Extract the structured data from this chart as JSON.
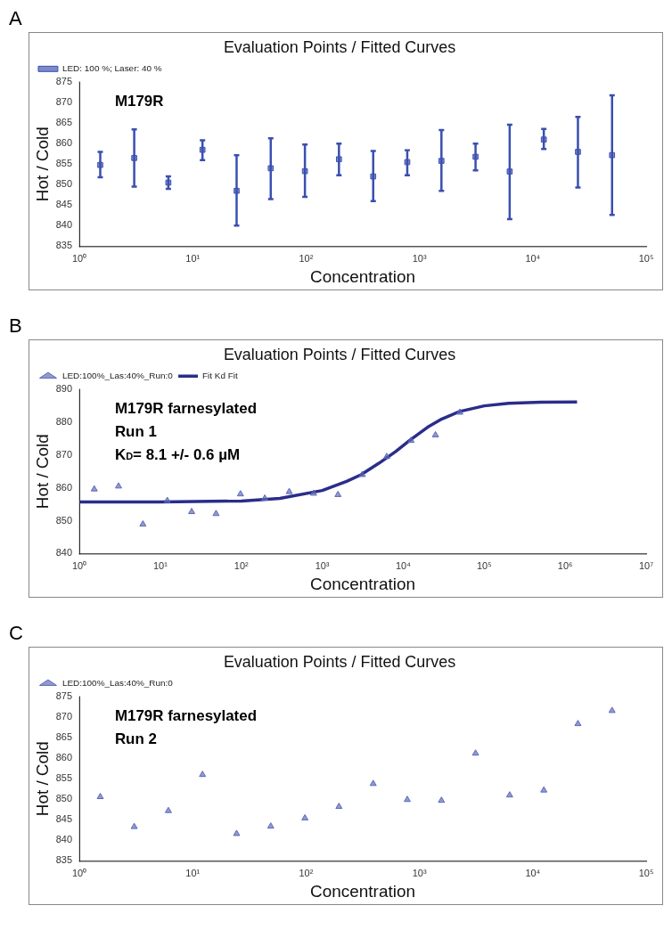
{
  "chart_data": [
    {
      "type": "scatter",
      "title": "Evaluation Points / Fitted Curves",
      "xlabel": "Concentration",
      "ylabel": "Hot / Cold",
      "annotations": [
        "A",
        "M179R"
      ],
      "x": [
        1.53,
        3.05,
        6.1,
        12.2,
        24.4,
        48.8,
        97.7,
        195,
        391,
        781,
        1563,
        3125,
        6250,
        12500,
        25000,
        50000
      ],
      "series": [
        {
          "name": "LED: 100 %; Laser: 40 %",
          "color": "#3a4fb0",
          "marker": "square",
          "values": [
            854.8,
            856.5,
            850.5,
            858.5,
            848.5,
            854,
            853.3,
            856.2,
            852,
            855.5,
            855.8,
            856.8,
            853.2,
            861,
            858,
            857.2
          ],
          "errors": [
            [
              851.8,
              858
            ],
            [
              849.5,
              863.5
            ],
            [
              849,
              852
            ],
            [
              856,
              860.8
            ],
            [
              840,
              857.2
            ],
            [
              846.5,
              861.3
            ],
            [
              847,
              859.8
            ],
            [
              852.3,
              860
            ],
            [
              846,
              858.2
            ],
            [
              852.3,
              858.4
            ],
            [
              848.5,
              863.3
            ],
            [
              853.5,
              860
            ],
            [
              841.6,
              864.6
            ],
            [
              858.7,
              863.6
            ],
            [
              849.3,
              866.5
            ],
            [
              842.6,
              871.8
            ]
          ]
        }
      ],
      "xlim": [
        1,
        100000
      ],
      "xticks": [
        {
          "value": 1,
          "label": "10⁰"
        },
        {
          "value": 10,
          "label": "10¹"
        },
        {
          "value": 100,
          "label": "10²"
        },
        {
          "value": 1000,
          "label": "10³"
        },
        {
          "value": 10000,
          "label": "10⁴"
        },
        {
          "value": 100000,
          "label": "10⁵"
        }
      ],
      "ylim": [
        835,
        875
      ],
      "yticks": [
        835,
        840,
        845,
        850,
        855,
        860,
        865,
        870,
        875
      ],
      "log": "x",
      "grid": false,
      "legend": "top left"
    },
    {
      "type": "scatter",
      "title": "Evaluation Points / Fitted Curves",
      "xlabel": "Concentration",
      "ylabel": "Hot / Cold",
      "annotations": [
        "B",
        "M179R farnesylated",
        "Run 1",
        "K$_{D}$= 8.1 +/- 0.6 µM"
      ],
      "x": [
        1.53,
        3.05,
        6.1,
        12.2,
        24.4,
        48.8,
        97.7,
        195,
        391,
        781,
        1563,
        3125,
        6250,
        12500,
        25000,
        50000
      ],
      "series": [
        {
          "name": "LED:100%_Las:40%_Run:0",
          "color": "#5a68b8",
          "marker": "triangle",
          "values": [
            859.6,
            860.5,
            848.9,
            856.1,
            852.7,
            852.1,
            858.1,
            856.8,
            858.8,
            858.3,
            857.9,
            864,
            869.5,
            874.4,
            876.1,
            883
          ]
        },
        {
          "name": "Fit Kd Fit",
          "type": "line",
          "color": "#2a2d8a",
          "marker": "none",
          "line_style": "solid",
          "x": [
            1,
            10,
            100,
            300,
            1000,
            2000,
            3000,
            5000,
            8000,
            12000,
            20000,
            30000,
            50000,
            100000,
            200000,
            500000,
            1400000
          ],
          "values": [
            855.7,
            855.7,
            856,
            856.8,
            859.2,
            862,
            864,
            867.5,
            871,
            874.5,
            878.5,
            881,
            883.3,
            885,
            885.8,
            886.1,
            886.2
          ]
        }
      ],
      "xlim": [
        1,
        10000000
      ],
      "xticks": [
        {
          "value": 1,
          "label": "10⁰"
        },
        {
          "value": 10,
          "label": "10¹"
        },
        {
          "value": 100,
          "label": "10²"
        },
        {
          "value": 1000,
          "label": "10³"
        },
        {
          "value": 10000,
          "label": "10⁴"
        },
        {
          "value": 100000,
          "label": "10⁵"
        },
        {
          "value": 1000000,
          "label": "10⁶"
        },
        {
          "value": 10000000,
          "label": "10⁷"
        }
      ],
      "ylim": [
        840,
        890
      ],
      "yticks": [
        840,
        850,
        860,
        870,
        880,
        890
      ],
      "log": "x",
      "grid": false,
      "legend": "top left"
    },
    {
      "type": "scatter",
      "title": "Evaluation Points / Fitted Curves",
      "xlabel": "Concentration",
      "ylabel": "Hot / Cold",
      "annotations": [
        "C",
        "M179R farnesylated",
        "Run 2"
      ],
      "x": [
        1.53,
        3.05,
        6.1,
        12.2,
        24.4,
        48.8,
        97.7,
        195,
        391,
        781,
        1563,
        3125,
        6250,
        12500,
        25000,
        50000
      ],
      "series": [
        {
          "name": "LED:100%_Las:40%_Run:0",
          "color": "#5a68b8",
          "marker": "triangle",
          "values": [
            850.6,
            843.3,
            847.2,
            856,
            841.6,
            843.4,
            845.4,
            848.2,
            853.8,
            849.9,
            849.7,
            861.2,
            851,
            852.2,
            868.4,
            871.6
          ]
        }
      ],
      "xlim": [
        1,
        100000
      ],
      "xticks": [
        {
          "value": 1,
          "label": "10⁰"
        },
        {
          "value": 10,
          "label": "10¹"
        },
        {
          "value": 100,
          "label": "10²"
        },
        {
          "value": 1000,
          "label": "10³"
        },
        {
          "value": 10000,
          "label": "10⁴"
        },
        {
          "value": 100000,
          "label": "10⁵"
        }
      ],
      "ylim": [
        835,
        875
      ],
      "yticks": [
        835,
        840,
        845,
        850,
        855,
        860,
        865,
        870,
        875
      ],
      "log": "x",
      "grid": false,
      "legend": "top left"
    }
  ]
}
